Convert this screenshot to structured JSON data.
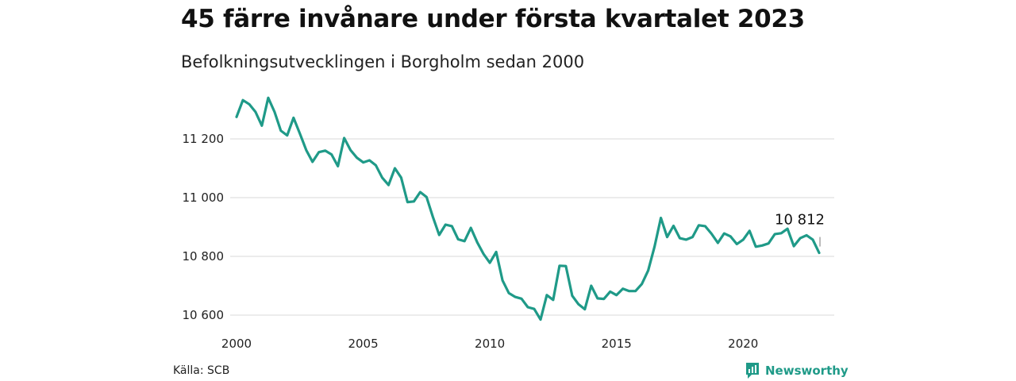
{
  "header": {
    "title": "45 färre invånare under första kvartalet 2023",
    "subtitle": "Befolkningsutvecklingen i Borgholm sedan 2000"
  },
  "footer": {
    "source": "Källa: SCB",
    "brand": "Newsworthy"
  },
  "colors": {
    "line": "#1f9a88",
    "grid": "#d9d9d9",
    "brand": "#1f9a88"
  },
  "icons": {
    "brand_logo": "bar-chart-badge-icon"
  },
  "chart_data": {
    "type": "line",
    "title": "45 färre invånare under första kvartalet 2023",
    "subtitle": "Befolkningsutvecklingen i Borgholm sedan 2000",
    "xlabel": "",
    "ylabel": "",
    "xlim": [
      2000,
      2023.25
    ],
    "ylim": [
      10580,
      11350
    ],
    "x_ticks": [
      2000,
      2005,
      2010,
      2015,
      2020
    ],
    "x_tick_labels": [
      "2000",
      "2005",
      "2010",
      "2015",
      "2020"
    ],
    "y_ticks": [
      10600,
      10800,
      11000,
      11200
    ],
    "y_tick_labels": [
      "10 600",
      "10 800",
      "11 000",
      "11 200"
    ],
    "grid": "horizontal",
    "legend": "none",
    "end_label": "10 812",
    "x": [
      2000.0,
      2000.25,
      2000.5,
      2000.75,
      2001.0,
      2001.25,
      2001.5,
      2001.75,
      2002.0,
      2002.25,
      2002.5,
      2002.75,
      2003.0,
      2003.25,
      2003.5,
      2003.75,
      2004.0,
      2004.25,
      2004.5,
      2004.75,
      2005.0,
      2005.25,
      2005.5,
      2005.75,
      2006.0,
      2006.25,
      2006.5,
      2006.75,
      2007.0,
      2007.25,
      2007.5,
      2007.75,
      2008.0,
      2008.25,
      2008.5,
      2008.75,
      2009.0,
      2009.25,
      2009.5,
      2009.75,
      2010.0,
      2010.25,
      2010.5,
      2010.75,
      2011.0,
      2011.25,
      2011.5,
      2011.75,
      2012.0,
      2012.25,
      2012.5,
      2012.75,
      2013.0,
      2013.25,
      2013.5,
      2013.75,
      2014.0,
      2014.25,
      2014.5,
      2014.75,
      2015.0,
      2015.25,
      2015.5,
      2015.75,
      2016.0,
      2016.25,
      2016.5,
      2016.75,
      2017.0,
      2017.25,
      2017.5,
      2017.75,
      2018.0,
      2018.25,
      2018.5,
      2018.75,
      2019.0,
      2019.25,
      2019.5,
      2019.75,
      2020.0,
      2020.25,
      2020.5,
      2020.75,
      2021.0,
      2021.25,
      2021.5,
      2021.75,
      2022.0,
      2022.25,
      2022.5,
      2022.75,
      2023.0
    ],
    "y": [
      11275,
      11332,
      11318,
      11292,
      11245,
      11340,
      11292,
      11228,
      11212,
      11272,
      11218,
      11162,
      11122,
      11155,
      11160,
      11147,
      11107,
      11203,
      11162,
      11136,
      11120,
      11127,
      11110,
      11068,
      11043,
      11100,
      11068,
      10985,
      10987,
      11019,
      11002,
      10935,
      10873,
      10908,
      10903,
      10858,
      10852,
      10897,
      10848,
      10808,
      10778,
      10815,
      10718,
      10675,
      10662,
      10656,
      10627,
      10621,
      10585,
      10668,
      10652,
      10768,
      10767,
      10666,
      10637,
      10620,
      10700,
      10657,
      10655,
      10680,
      10668,
      10690,
      10682,
      10682,
      10706,
      10752,
      10833,
      10931,
      10866,
      10904,
      10862,
      10857,
      10866,
      10906,
      10903,
      10877,
      10846,
      10878,
      10868,
      10842,
      10857,
      10887,
      10833,
      10837,
      10844,
      10876,
      10879,
      10894,
      10835,
      10862,
      10872,
      10857,
      10812
    ]
  }
}
